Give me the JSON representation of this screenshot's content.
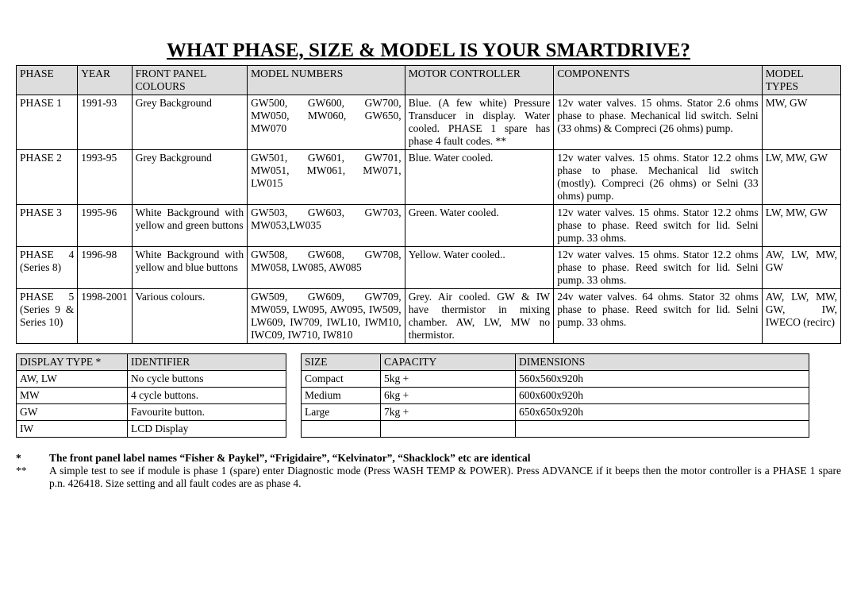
{
  "title": "WHAT PHASE, SIZE & MODEL IS YOUR SMARTDRIVE?",
  "mainTable": {
    "headers": [
      "PHASE",
      "YEAR",
      "FRONT PANEL COLOURS",
      "MODEL NUMBERS",
      "MOTOR CONTROLLER",
      "COMPONENTS",
      "MODEL TYPES"
    ],
    "colWidths": [
      "70px",
      "62px",
      "132px",
      "180px",
      "170px",
      "238px",
      "90px"
    ],
    "rows": [
      {
        "phase": "PHASE 1",
        "year": "1991-93",
        "panel": "Grey Background",
        "models": "GW500, GW600, GW700, MW050, MW060, GW650, MW070",
        "controller": "Blue. (A few white) Pressure Transducer in display. Water cooled. PHASE 1 spare has phase 4 fault codes. **",
        "components": "12v water valves. 15 ohms. Stator 2.6 ohms phase to phase. Mechanical lid switch. Selni (33 ohms) & Compreci (26 ohms)  pump.",
        "types": "MW, GW"
      },
      {
        "phase": "PHASE 2",
        "year": "1993-95",
        "panel": "Grey Background",
        "models": "GW501, GW601, GW701, MW051, MW061, MW071, LW015",
        "controller": "Blue. Water cooled.",
        "components": "12v water valves. 15 ohms. Stator 12.2 ohms phase to phase. Mechanical lid switch (mostly). Compreci (26 ohms) or Selni (33 ohms) pump.",
        "types": "LW, MW, GW"
      },
      {
        "phase": "PHASE 3",
        "year": "1995-96",
        "panel": "White Background with yellow and green buttons",
        "models": "GW503, GW603, GW703, MW053,LW035",
        "controller": "Green. Water cooled.",
        "components": "12v water valves. 15 ohms. Stator 12.2 ohms phase to phase. Reed switch for lid. Selni pump. 33 ohms.",
        "types": "LW, MW, GW"
      },
      {
        "phase": "PHASE 4 (Series 8)",
        "year": "1996-98",
        "panel": "White Background with yellow and blue buttons",
        "models": "GW508, GW608, GW708, MW058, LW085, AW085",
        "controller": "Yellow. Water cooled..",
        "components": "12v water valves. 15 ohms. Stator 12.2 ohms phase to phase. Reed switch for lid. Selni pump. 33 ohms.",
        "types": "AW, LW, MW, GW"
      },
      {
        "phase": "PHASE 5 (Series 9 & Series 10)",
        "year": "1998-2001",
        "panel": "Various colours.",
        "models": "GW509, GW609, GW709, MW059, LW095, AW095, IW509, LW609, IW709, IWL10, IWM10, IWC09, IW710, IW810",
        "controller": "Grey. Air cooled. GW & IW have thermistor in mixing chamber. AW, LW, MW no thermistor.",
        "components": "24v water valves. 64 ohms. Stator 32 ohms phase to phase. Reed switch for lid. Selni pump. 33 ohms.",
        "types": "AW, LW, MW, GW, IW, IWECO (recirc)"
      }
    ]
  },
  "displayTable": {
    "headers": [
      "DISPLAY TYPE *",
      "IDENTIFIER"
    ],
    "colWidths": [
      "140px",
      "200px"
    ],
    "rows": [
      [
        "AW, LW",
        "No cycle buttons"
      ],
      [
        "MW",
        "4 cycle buttons."
      ],
      [
        "GW",
        "Favourite button."
      ],
      [
        "IW",
        "LCD Display"
      ]
    ]
  },
  "sizeTable": {
    "headers": [
      "SIZE",
      "CAPACITY",
      "DIMENSIONS"
    ],
    "colWidths": [
      "100px",
      "170px",
      "370px"
    ],
    "rows": [
      [
        "Compact",
        "5kg +",
        "560x560x920h"
      ],
      [
        "Medium",
        "6kg +",
        "600x600x920h"
      ],
      [
        "Large",
        "7kg +",
        "650x650x920h"
      ],
      [
        "",
        "",
        ""
      ]
    ]
  },
  "footnotes": [
    {
      "marker": "*",
      "text": "The front panel label names “Fisher & Paykel”, “Frigidaire”, “Kelvinator”, “Shacklock” etc are identical",
      "bold": true
    },
    {
      "marker": "**",
      "text": "A simple test to see if module is phase 1 (spare) enter Diagnostic mode (Press WASH TEMP & POWER). Press ADVANCE if it beeps then the motor controller is a PHASE 1 spare p.n. 426418. Size setting and all fault codes are as phase 4.",
      "bold": false
    }
  ]
}
